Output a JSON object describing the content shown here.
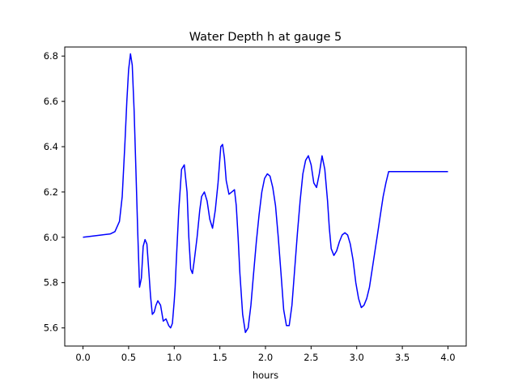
{
  "chart_data": {
    "type": "line",
    "title": "Water Depth h at gauge 5",
    "xlabel": "hours",
    "ylabel": "",
    "xlim": [
      -0.2,
      4.2
    ],
    "ylim": [
      5.52,
      6.84
    ],
    "xticks": [
      0.0,
      0.5,
      1.0,
      1.5,
      2.0,
      2.5,
      3.0,
      3.5,
      4.0
    ],
    "xtick_labels": [
      "0.0",
      "0.5",
      "1.0",
      "1.5",
      "2.0",
      "2.5",
      "3.0",
      "3.5",
      "4.0"
    ],
    "yticks": [
      5.6,
      5.8,
      6.0,
      6.2,
      6.4,
      6.6,
      6.8
    ],
    "ytick_labels": [
      "5.6",
      "5.8",
      "6.0",
      "6.2",
      "6.4",
      "6.6",
      "6.8"
    ],
    "grid": false,
    "series": [
      {
        "color": "#0000ff",
        "x": [
          0.0,
          0.1,
          0.2,
          0.3,
          0.35,
          0.4,
          0.43,
          0.46,
          0.48,
          0.5,
          0.52,
          0.54,
          0.56,
          0.58,
          0.6,
          0.62,
          0.64,
          0.66,
          0.68,
          0.7,
          0.72,
          0.74,
          0.76,
          0.78,
          0.8,
          0.82,
          0.85,
          0.88,
          0.91,
          0.94,
          0.96,
          0.98,
          1.0,
          1.01,
          1.02,
          1.03,
          1.05,
          1.08,
          1.11,
          1.14,
          1.16,
          1.18,
          1.2,
          1.22,
          1.25,
          1.28,
          1.3,
          1.33,
          1.36,
          1.39,
          1.42,
          1.45,
          1.48,
          1.51,
          1.53,
          1.55,
          1.57,
          1.6,
          1.63,
          1.66,
          1.68,
          1.7,
          1.72,
          1.75,
          1.78,
          1.81,
          1.84,
          1.87,
          1.9,
          1.93,
          1.96,
          1.99,
          2.02,
          2.05,
          2.08,
          2.11,
          2.14,
          2.17,
          2.2,
          2.23,
          2.26,
          2.29,
          2.32,
          2.35,
          2.38,
          2.41,
          2.44,
          2.47,
          2.5,
          2.53,
          2.56,
          2.59,
          2.62,
          2.65,
          2.68,
          2.7,
          2.72,
          2.75,
          2.78,
          2.81,
          2.84,
          2.87,
          2.9,
          2.93,
          2.96,
          2.99,
          3.02,
          3.05,
          3.08,
          3.11,
          3.14,
          3.17,
          3.2,
          3.23,
          3.26,
          3.29,
          3.32,
          3.35,
          3.38,
          3.41,
          3.44,
          3.47,
          3.5,
          3.53,
          3.56,
          3.59,
          3.62,
          3.65,
          3.68,
          3.71,
          3.74,
          3.77,
          3.8,
          3.83,
          3.86,
          3.89,
          3.92,
          3.95,
          3.98,
          4.0
        ],
        "values": [
          6.0,
          6.005,
          6.01,
          6.015,
          6.025,
          6.07,
          6.18,
          6.42,
          6.6,
          6.74,
          6.81,
          6.76,
          6.56,
          6.3,
          6.02,
          5.78,
          5.82,
          5.96,
          5.99,
          5.97,
          5.86,
          5.74,
          5.66,
          5.67,
          5.7,
          5.72,
          5.7,
          5.63,
          5.64,
          5.61,
          5.6,
          5.62,
          5.72,
          5.78,
          5.87,
          5.96,
          6.12,
          6.3,
          6.32,
          6.2,
          6.0,
          5.86,
          5.84,
          5.9,
          6.0,
          6.12,
          6.18,
          6.2,
          6.16,
          6.08,
          6.04,
          6.12,
          6.24,
          6.4,
          6.41,
          6.35,
          6.25,
          6.19,
          6.2,
          6.21,
          6.14,
          6.0,
          5.84,
          5.66,
          5.58,
          5.6,
          5.7,
          5.84,
          5.98,
          6.1,
          6.2,
          6.26,
          6.28,
          6.27,
          6.22,
          6.14,
          6.0,
          5.84,
          5.68,
          5.61,
          5.61,
          5.7,
          5.86,
          6.02,
          6.16,
          6.28,
          6.34,
          6.36,
          6.32,
          6.24,
          6.22,
          6.28,
          6.36,
          6.3,
          6.16,
          6.04,
          5.95,
          5.92,
          5.94,
          5.98,
          6.01,
          6.02,
          6.01,
          5.97,
          5.9,
          5.8,
          5.73,
          5.69,
          5.7,
          5.73,
          5.78,
          5.86,
          5.94,
          6.02,
          6.1,
          6.18,
          6.24,
          6.29,
          6.29,
          6.29,
          6.29,
          6.29,
          6.29,
          6.29,
          6.29,
          6.29,
          6.29,
          6.29,
          6.29,
          6.29,
          6.29,
          6.29,
          6.29,
          6.29,
          6.29,
          6.29,
          6.29,
          6.29,
          6.29,
          6.29
        ]
      }
    ]
  }
}
